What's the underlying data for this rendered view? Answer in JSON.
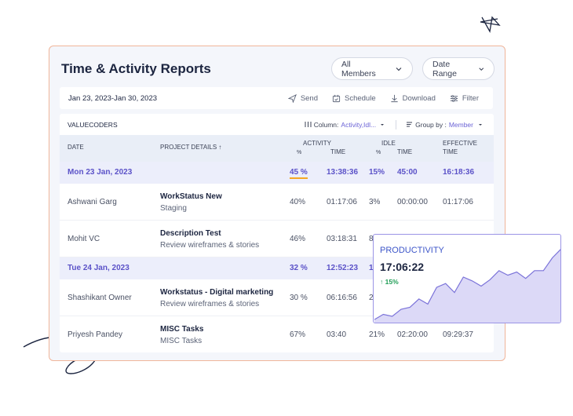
{
  "header": {
    "title": "Time & Activity Reports",
    "members_dropdown": "All Members",
    "range_dropdown": "Date Range"
  },
  "toolbar": {
    "date_range": "Jan 23, 2023-Jan 30, 2023",
    "send": "Send",
    "schedule": "Schedule",
    "download": "Download",
    "filter": "Filter"
  },
  "table": {
    "org": "VALUECODERS",
    "column_label": "Column:",
    "column_value": "Activity,Idl...",
    "group_label": "Group by :",
    "group_value": "Member",
    "headers": {
      "date": "DATE",
      "project": "PROJECT DETAILS ↑",
      "activity": "ACTIVITY",
      "activity_pct": "%",
      "activity_time": "TIME",
      "idle": "IDLE",
      "idle_pct": "%",
      "idle_time": "TIME",
      "effective": "EFFECTIVE",
      "effective_time": "TIME"
    },
    "rows": [
      {
        "type": "group",
        "date": "Mon 23 Jan, 2023",
        "activity_pct": "45 %",
        "activity_time": "13:38:36",
        "idle_pct": "15%",
        "idle_time": "45:00",
        "effective_time": "16:18:36"
      },
      {
        "type": "item",
        "member": "Ashwani Garg",
        "project": "WorkStatus New",
        "task": "Staging",
        "activity_pct": "40%",
        "activity_time": "01:17:06",
        "idle_pct": "3%",
        "idle_time": "00:00:00",
        "effective_time": "01:17:06"
      },
      {
        "type": "item",
        "member": "Mohit VC",
        "project": "Description Test",
        "task": "Review wireframes & stories",
        "activity_pct": "46%",
        "activity_time": "03:18:31",
        "idle_pct": "8"
      },
      {
        "type": "group",
        "date": "Tue 24 Jan, 2023",
        "activity_pct": "32 %",
        "activity_time": "12:52:23",
        "idle_pct": "1"
      },
      {
        "type": "item",
        "member": "Shashikant Owner",
        "project": "Workstatus - Digital marketing",
        "task": "Review wireframes & stories",
        "activity_pct": "30 %",
        "activity_time": "06:16:56",
        "idle_pct": "2"
      },
      {
        "type": "item",
        "member": "Priyesh Pandey",
        "project": "MISC Tasks",
        "task": "MISC Tasks",
        "activity_pct": "67%",
        "activity_time": "03:40",
        "idle_pct": "21%",
        "idle_time": "02:20:00",
        "effective_time": "09:29:37"
      }
    ]
  },
  "productivity": {
    "label": "PRODUCTIVITY",
    "time": "17:06:22",
    "trend": "15%",
    "trend_direction": "up",
    "series": [
      6,
      14,
      11,
      22,
      25,
      38,
      30,
      56,
      62,
      48,
      72,
      66,
      58,
      68,
      82,
      75,
      80,
      70,
      82,
      82,
      102,
      116
    ],
    "colors": {
      "line": "#7b73d9",
      "fill": "#dcd9f7"
    }
  },
  "colors": {
    "accent": "#5b52c8",
    "border": "#f0b59a",
    "trend_up": "#1f9d55",
    "highlight": "#f5a623"
  }
}
